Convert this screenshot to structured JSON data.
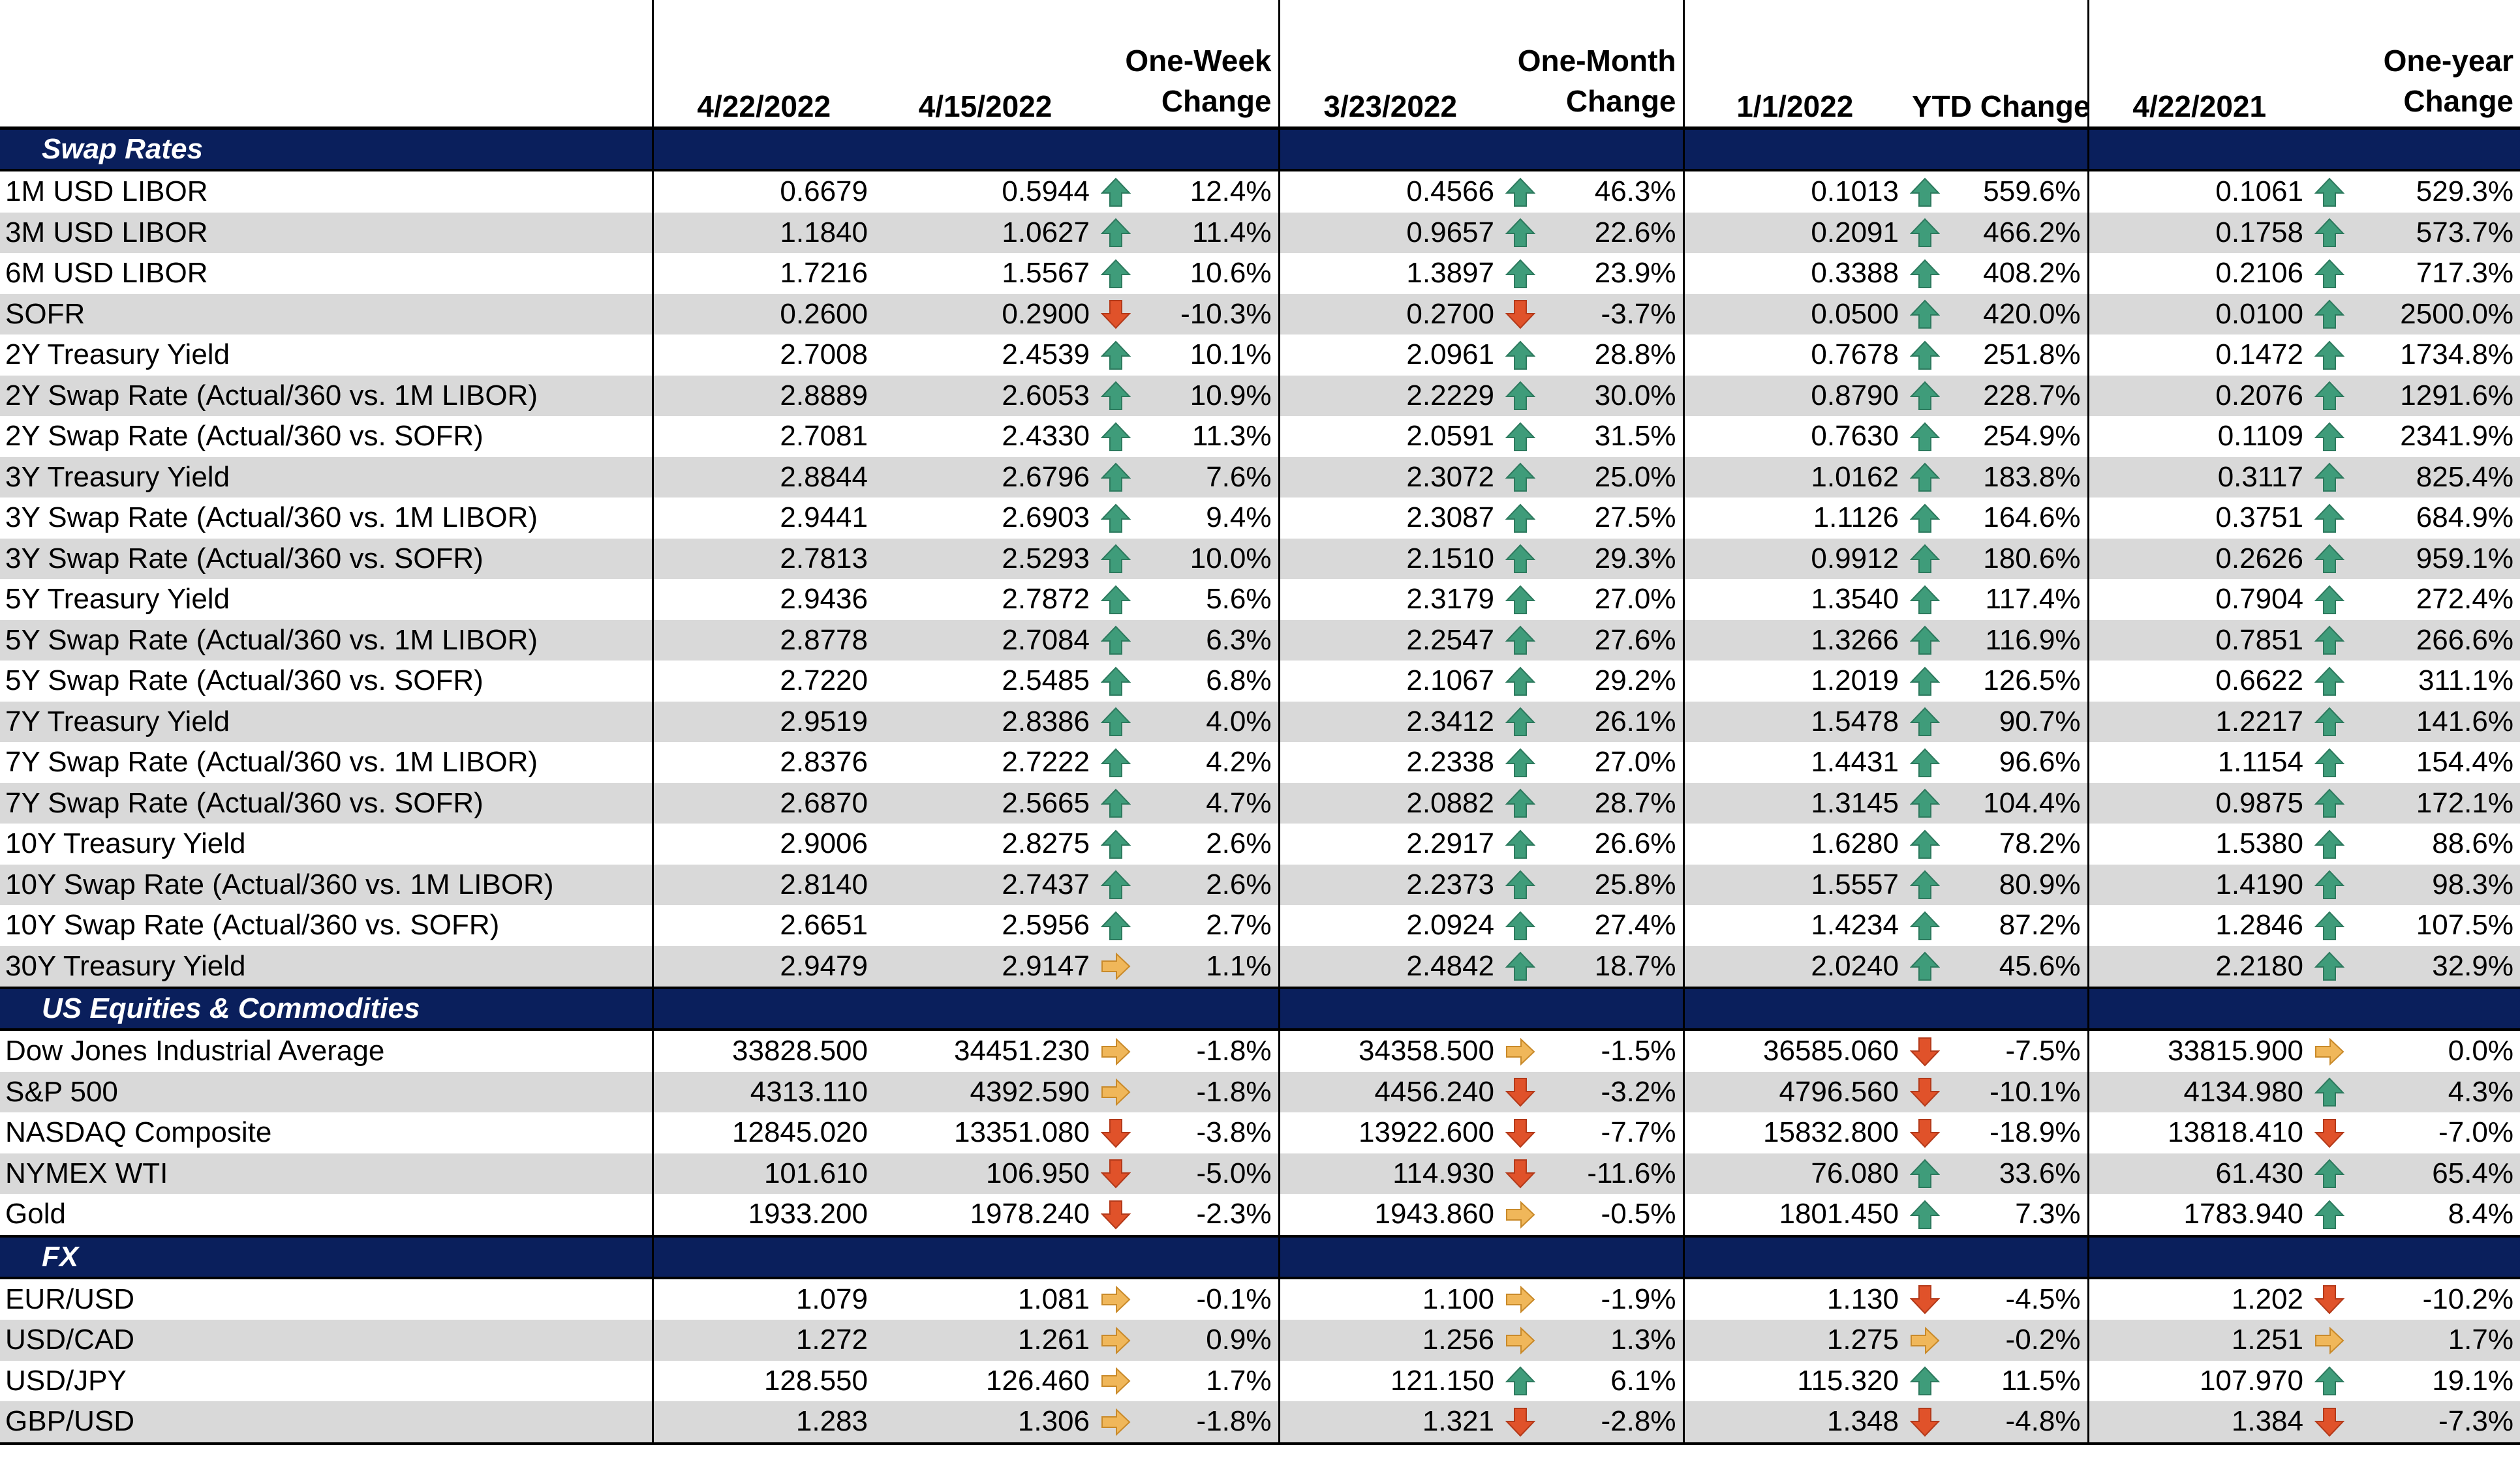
{
  "header": {
    "c1": "4/22/2022",
    "c2": "4/15/2022",
    "c3a": "One-Week",
    "c3b": "Change",
    "c4": "3/23/2022",
    "c5a": "One-Month",
    "c5b": "Change",
    "c6": "1/1/2022",
    "c7": "YTD Change",
    "c8": "4/22/2021",
    "c9a": "One-year",
    "c9b": "Change"
  },
  "colors": {
    "section_bg": "#0a1f5c",
    "row_shade": "#d9d9d9",
    "up": "#3f9c7a",
    "down": "#e0522a",
    "flat": "#f0b75a"
  },
  "sections": [
    {
      "title": "Swap Rates",
      "rows": [
        {
          "name": "1M USD LIBOR",
          "v1": "0.6679",
          "v2": "0.5944",
          "a2": "up",
          "ch1": "12.4%",
          "v3": "0.4566",
          "a3": "up",
          "ch2": "46.3%",
          "v4": "0.1013",
          "a4": "up",
          "ch3": "559.6%",
          "v5": "0.1061",
          "a5": "up",
          "ch4": "529.3%"
        },
        {
          "name": "3M USD LIBOR",
          "v1": "1.1840",
          "v2": "1.0627",
          "a2": "up",
          "ch1": "11.4%",
          "v3": "0.9657",
          "a3": "up",
          "ch2": "22.6%",
          "v4": "0.2091",
          "a4": "up",
          "ch3": "466.2%",
          "v5": "0.1758",
          "a5": "up",
          "ch4": "573.7%"
        },
        {
          "name": "6M USD LIBOR",
          "v1": "1.7216",
          "v2": "1.5567",
          "a2": "up",
          "ch1": "10.6%",
          "v3": "1.3897",
          "a3": "up",
          "ch2": "23.9%",
          "v4": "0.3388",
          "a4": "up",
          "ch3": "408.2%",
          "v5": "0.2106",
          "a5": "up",
          "ch4": "717.3%"
        },
        {
          "name": "SOFR",
          "v1": "0.2600",
          "v2": "0.2900",
          "a2": "down",
          "ch1": "-10.3%",
          "v3": "0.2700",
          "a3": "down",
          "ch2": "-3.7%",
          "v4": "0.0500",
          "a4": "up",
          "ch3": "420.0%",
          "v5": "0.0100",
          "a5": "up",
          "ch4": "2500.0%"
        },
        {
          "name": "2Y Treasury Yield",
          "v1": "2.7008",
          "v2": "2.4539",
          "a2": "up",
          "ch1": "10.1%",
          "v3": "2.0961",
          "a3": "up",
          "ch2": "28.8%",
          "v4": "0.7678",
          "a4": "up",
          "ch3": "251.8%",
          "v5": "0.1472",
          "a5": "up",
          "ch4": "1734.8%"
        },
        {
          "name": "2Y Swap Rate (Actual/360 vs. 1M LIBOR)",
          "v1": "2.8889",
          "v2": "2.6053",
          "a2": "up",
          "ch1": "10.9%",
          "v3": "2.2229",
          "a3": "up",
          "ch2": "30.0%",
          "v4": "0.8790",
          "a4": "up",
          "ch3": "228.7%",
          "v5": "0.2076",
          "a5": "up",
          "ch4": "1291.6%"
        },
        {
          "name": "2Y Swap Rate (Actual/360 vs. SOFR)",
          "v1": "2.7081",
          "v2": "2.4330",
          "a2": "up",
          "ch1": "11.3%",
          "v3": "2.0591",
          "a3": "up",
          "ch2": "31.5%",
          "v4": "0.7630",
          "a4": "up",
          "ch3": "254.9%",
          "v5": "0.1109",
          "a5": "up",
          "ch4": "2341.9%"
        },
        {
          "name": "3Y Treasury Yield",
          "v1": "2.8844",
          "v2": "2.6796",
          "a2": "up",
          "ch1": "7.6%",
          "v3": "2.3072",
          "a3": "up",
          "ch2": "25.0%",
          "v4": "1.0162",
          "a4": "up",
          "ch3": "183.8%",
          "v5": "0.3117",
          "a5": "up",
          "ch4": "825.4%"
        },
        {
          "name": "3Y Swap Rate (Actual/360 vs. 1M LIBOR)",
          "v1": "2.9441",
          "v2": "2.6903",
          "a2": "up",
          "ch1": "9.4%",
          "v3": "2.3087",
          "a3": "up",
          "ch2": "27.5%",
          "v4": "1.1126",
          "a4": "up",
          "ch3": "164.6%",
          "v5": "0.3751",
          "a5": "up",
          "ch4": "684.9%"
        },
        {
          "name": "3Y Swap Rate (Actual/360 vs. SOFR)",
          "v1": "2.7813",
          "v2": "2.5293",
          "a2": "up",
          "ch1": "10.0%",
          "v3": "2.1510",
          "a3": "up",
          "ch2": "29.3%",
          "v4": "0.9912",
          "a4": "up",
          "ch3": "180.6%",
          "v5": "0.2626",
          "a5": "up",
          "ch4": "959.1%"
        },
        {
          "name": "5Y Treasury Yield",
          "v1": "2.9436",
          "v2": "2.7872",
          "a2": "up",
          "ch1": "5.6%",
          "v3": "2.3179",
          "a3": "up",
          "ch2": "27.0%",
          "v4": "1.3540",
          "a4": "up",
          "ch3": "117.4%",
          "v5": "0.7904",
          "a5": "up",
          "ch4": "272.4%"
        },
        {
          "name": "5Y Swap Rate (Actual/360 vs. 1M LIBOR)",
          "v1": "2.8778",
          "v2": "2.7084",
          "a2": "up",
          "ch1": "6.3%",
          "v3": "2.2547",
          "a3": "up",
          "ch2": "27.6%",
          "v4": "1.3266",
          "a4": "up",
          "ch3": "116.9%",
          "v5": "0.7851",
          "a5": "up",
          "ch4": "266.6%"
        },
        {
          "name": "5Y Swap Rate (Actual/360 vs. SOFR)",
          "v1": "2.7220",
          "v2": "2.5485",
          "a2": "up",
          "ch1": "6.8%",
          "v3": "2.1067",
          "a3": "up",
          "ch2": "29.2%",
          "v4": "1.2019",
          "a4": "up",
          "ch3": "126.5%",
          "v5": "0.6622",
          "a5": "up",
          "ch4": "311.1%"
        },
        {
          "name": "7Y Treasury Yield",
          "v1": "2.9519",
          "v2": "2.8386",
          "a2": "up",
          "ch1": "4.0%",
          "v3": "2.3412",
          "a3": "up",
          "ch2": "26.1%",
          "v4": "1.5478",
          "a4": "up",
          "ch3": "90.7%",
          "v5": "1.2217",
          "a5": "up",
          "ch4": "141.6%"
        },
        {
          "name": "7Y Swap Rate (Actual/360 vs. 1M LIBOR)",
          "v1": "2.8376",
          "v2": "2.7222",
          "a2": "up",
          "ch1": "4.2%",
          "v3": "2.2338",
          "a3": "up",
          "ch2": "27.0%",
          "v4": "1.4431",
          "a4": "up",
          "ch3": "96.6%",
          "v5": "1.1154",
          "a5": "up",
          "ch4": "154.4%"
        },
        {
          "name": "7Y Swap Rate (Actual/360 vs. SOFR)",
          "v1": "2.6870",
          "v2": "2.5665",
          "a2": "up",
          "ch1": "4.7%",
          "v3": "2.0882",
          "a3": "up",
          "ch2": "28.7%",
          "v4": "1.3145",
          "a4": "up",
          "ch3": "104.4%",
          "v5": "0.9875",
          "a5": "up",
          "ch4": "172.1%"
        },
        {
          "name": "10Y Treasury Yield",
          "v1": "2.9006",
          "v2": "2.8275",
          "a2": "up",
          "ch1": "2.6%",
          "v3": "2.2917",
          "a3": "up",
          "ch2": "26.6%",
          "v4": "1.6280",
          "a4": "up",
          "ch3": "78.2%",
          "v5": "1.5380",
          "a5": "up",
          "ch4": "88.6%"
        },
        {
          "name": "10Y Swap Rate (Actual/360 vs. 1M LIBOR)",
          "v1": "2.8140",
          "v2": "2.7437",
          "a2": "up",
          "ch1": "2.6%",
          "v3": "2.2373",
          "a3": "up",
          "ch2": "25.8%",
          "v4": "1.5557",
          "a4": "up",
          "ch3": "80.9%",
          "v5": "1.4190",
          "a5": "up",
          "ch4": "98.3%"
        },
        {
          "name": "10Y Swap Rate (Actual/360 vs. SOFR)",
          "v1": "2.6651",
          "v2": "2.5956",
          "a2": "up",
          "ch1": "2.7%",
          "v3": "2.0924",
          "a3": "up",
          "ch2": "27.4%",
          "v4": "1.4234",
          "a4": "up",
          "ch3": "87.2%",
          "v5": "1.2846",
          "a5": "up",
          "ch4": "107.5%"
        },
        {
          "name": "30Y Treasury Yield",
          "v1": "2.9479",
          "v2": "2.9147",
          "a2": "flat",
          "ch1": "1.1%",
          "v3": "2.4842",
          "a3": "up",
          "ch2": "18.7%",
          "v4": "2.0240",
          "a4": "up",
          "ch3": "45.6%",
          "v5": "2.2180",
          "a5": "up",
          "ch4": "32.9%"
        }
      ]
    },
    {
      "title": "US Equities & Commodities",
      "rows": [
        {
          "name": "Dow Jones Industrial Average",
          "v1": "33828.500",
          "v2": "34451.230",
          "a2": "flat",
          "ch1": "-1.8%",
          "v3": "34358.500",
          "a3": "flat",
          "ch2": "-1.5%",
          "v4": "36585.060",
          "a4": "down",
          "ch3": "-7.5%",
          "v5": "33815.900",
          "a5": "flat",
          "ch4": "0.0%"
        },
        {
          "name": "S&P 500",
          "v1": "4313.110",
          "v2": "4392.590",
          "a2": "flat",
          "ch1": "-1.8%",
          "v3": "4456.240",
          "a3": "down",
          "ch2": "-3.2%",
          "v4": "4796.560",
          "a4": "down",
          "ch3": "-10.1%",
          "v5": "4134.980",
          "a5": "up",
          "ch4": "4.3%"
        },
        {
          "name": "NASDAQ Composite",
          "v1": "12845.020",
          "v2": "13351.080",
          "a2": "down",
          "ch1": "-3.8%",
          "v3": "13922.600",
          "a3": "down",
          "ch2": "-7.7%",
          "v4": "15832.800",
          "a4": "down",
          "ch3": "-18.9%",
          "v5": "13818.410",
          "a5": "down",
          "ch4": "-7.0%"
        },
        {
          "name": "NYMEX WTI",
          "v1": "101.610",
          "v2": "106.950",
          "a2": "down",
          "ch1": "-5.0%",
          "v3": "114.930",
          "a3": "down",
          "ch2": "-11.6%",
          "v4": "76.080",
          "a4": "up",
          "ch3": "33.6%",
          "v5": "61.430",
          "a5": "up",
          "ch4": "65.4%"
        },
        {
          "name": "Gold",
          "v1": "1933.200",
          "v2": "1978.240",
          "a2": "down",
          "ch1": "-2.3%",
          "v3": "1943.860",
          "a3": "flat",
          "ch2": "-0.5%",
          "v4": "1801.450",
          "a4": "up",
          "ch3": "7.3%",
          "v5": "1783.940",
          "a5": "up",
          "ch4": "8.4%"
        }
      ]
    },
    {
      "title": "FX",
      "rows": [
        {
          "name": "EUR/USD",
          "v1": "1.079",
          "v2": "1.081",
          "a2": "flat",
          "ch1": "-0.1%",
          "v3": "1.100",
          "a3": "flat",
          "ch2": "-1.9%",
          "v4": "1.130",
          "a4": "down",
          "ch3": "-4.5%",
          "v5": "1.202",
          "a5": "down",
          "ch4": "-10.2%"
        },
        {
          "name": "USD/CAD",
          "v1": "1.272",
          "v2": "1.261",
          "a2": "flat",
          "ch1": "0.9%",
          "v3": "1.256",
          "a3": "flat",
          "ch2": "1.3%",
          "v4": "1.275",
          "a4": "flat",
          "ch3": "-0.2%",
          "v5": "1.251",
          "a5": "flat",
          "ch4": "1.7%"
        },
        {
          "name": "USD/JPY",
          "v1": "128.550",
          "v2": "126.460",
          "a2": "flat",
          "ch1": "1.7%",
          "v3": "121.150",
          "a3": "up",
          "ch2": "6.1%",
          "v4": "115.320",
          "a4": "up",
          "ch3": "11.5%",
          "v5": "107.970",
          "a5": "up",
          "ch4": "19.1%"
        },
        {
          "name": "GBP/USD",
          "v1": "1.283",
          "v2": "1.306",
          "a2": "flat",
          "ch1": "-1.8%",
          "v3": "1.321",
          "a3": "down",
          "ch2": "-2.8%",
          "v4": "1.348",
          "a4": "down",
          "ch3": "-4.8%",
          "v5": "1.384",
          "a5": "down",
          "ch4": "-7.3%"
        }
      ]
    }
  ]
}
